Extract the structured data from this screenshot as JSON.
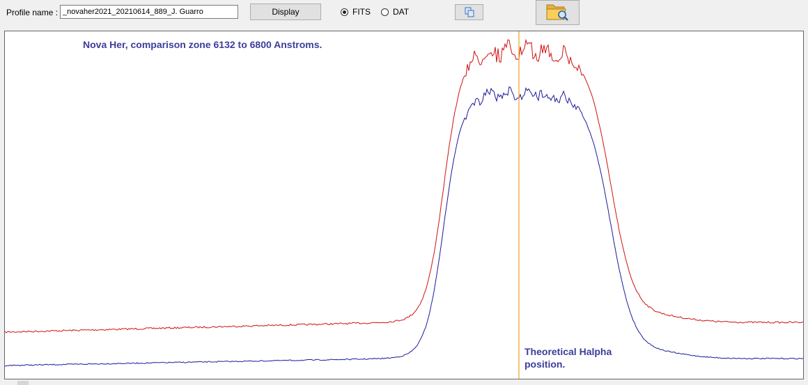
{
  "toolbar": {
    "profile_label": "Profile name :",
    "profile_value": "_novaher2021_20210614_889_J. Guarro",
    "display_label": "Display",
    "format_options": [
      {
        "label": "FITS",
        "selected": true
      },
      {
        "label": "DAT",
        "selected": false
      }
    ],
    "copy_icon": "copy-icon",
    "folder_icon": "folder-search-icon"
  },
  "plot": {
    "title": "Nova Her, comparison zone 6132 to 6800 Anstroms.",
    "annotation_line1": "Theoretical Halpha",
    "annotation_line2": "position.",
    "colors": {
      "series_red": "#d01010",
      "series_blue": "#1a1a9a",
      "marker": "#f0a020",
      "text": "#3b3d9a"
    }
  }
}
